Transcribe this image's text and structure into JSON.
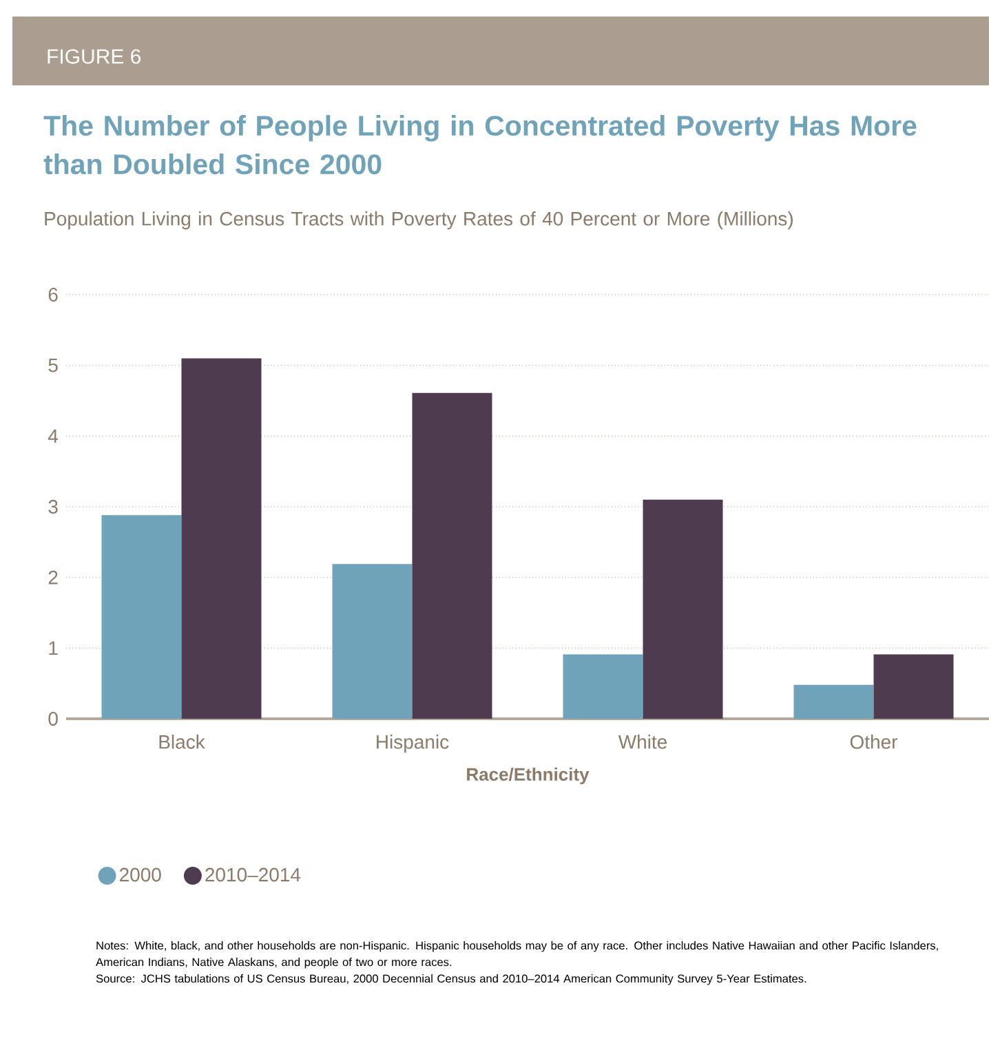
{
  "chart_data": {
    "type": "bar",
    "title": "The Number of People Living in Concentrated Poverty Has More than Doubled Since 2000",
    "subtitle": "Population Living in Census Tracts with Poverty Rates of 40 Percent or More (Millions)",
    "xlabel": "Race/Ethnicity",
    "categories": [
      "Black",
      "Hispanic",
      "White",
      "Other"
    ],
    "series": [
      {
        "name": "2000",
        "color": "#6ea3b9",
        "values": [
          2.88,
          2.19,
          0.91,
          0.48
        ]
      },
      {
        "name": "2010–2014",
        "color": "#4f3b4f",
        "values": [
          5.1,
          4.61,
          3.1,
          0.91
        ]
      }
    ],
    "ylim": [
      0,
      6
    ],
    "yticks": [
      0,
      1,
      2,
      3,
      4,
      5,
      6
    ],
    "grid": "y",
    "legend": "bottom",
    "annotations": [
      "FIGURE 6",
      "Notes: White, black, and other households are non-Hispanic. Hispanic households may be of any race. Other includes Native Hawaiian and other Pacific Islanders, American Indians, Native Alaskans, and people of two or more races.",
      "Source: JCHS tabulations of US Census Bureau, 2000 Decennial Census and 2010–2014 American Community Survey 5-Year Estimates."
    ]
  }
}
